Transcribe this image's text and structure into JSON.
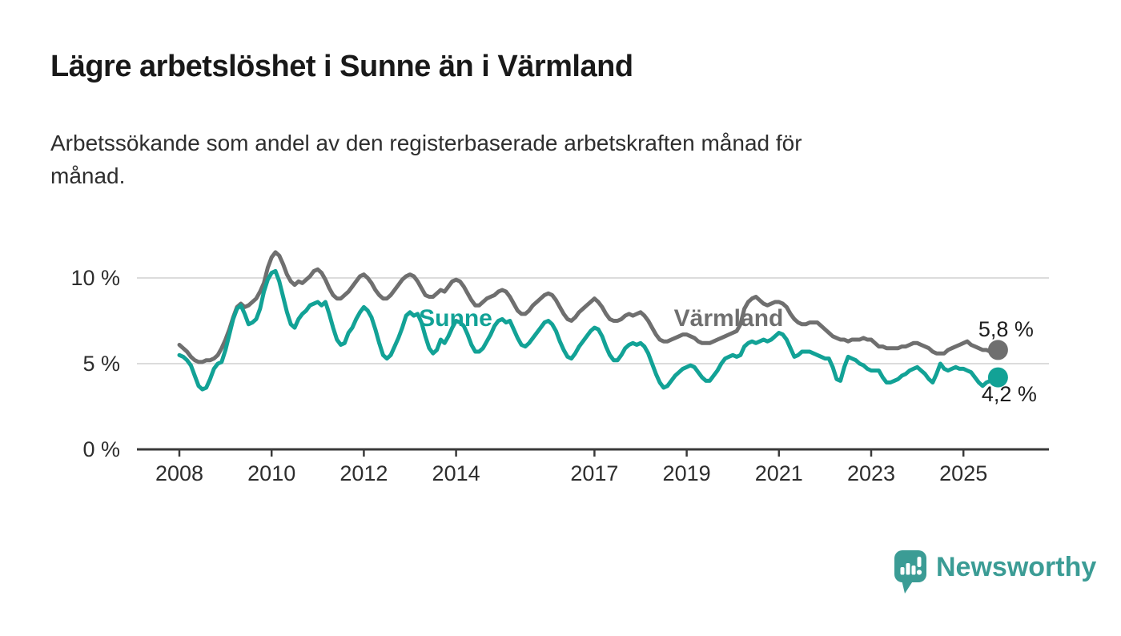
{
  "header": {
    "title": "Lägre arbetslöshet i Sunne än i Värmland",
    "subtitle_line1": "Arbetssökande som andel av den registerbaserade arbetskraften månad för",
    "subtitle_line2": "månad."
  },
  "chart_data": {
    "type": "line",
    "title": "Lägre arbetslöshet i Sunne än i Värmland",
    "subtitle": "Arbetssökande som andel av den registerbaserade arbetskraften månad för månad.",
    "unit": "%",
    "frequency": "monthly",
    "start": "2008-01",
    "end": "2025-10",
    "grid": "horizontal gridlines at 5 % and 10 %",
    "legend_position": "inline labels on lines",
    "ylim": [
      0,
      12.5
    ],
    "x_tick_labels": [
      2008,
      2010,
      2012,
      2014,
      2017,
      2019,
      2021,
      2023,
      2025
    ],
    "y_ticks": [
      {
        "value": 0,
        "label": "0 %"
      },
      {
        "value": 5,
        "label": "5 %"
      },
      {
        "value": 10,
        "label": "10 %"
      }
    ],
    "series": [
      {
        "name": "Sunne",
        "color": "#12a296",
        "end_label": "4,2 %",
        "last_value": 4.2,
        "values": [
          5.5,
          5.4,
          5.2,
          4.9,
          4.3,
          3.7,
          3.5,
          3.6,
          4.1,
          4.7,
          5.0,
          5.1,
          5.8,
          6.7,
          7.6,
          8.2,
          8.4,
          7.9,
          7.3,
          7.4,
          7.6,
          8.2,
          9.2,
          9.9,
          10.3,
          10.4,
          9.8,
          8.9,
          8.0,
          7.3,
          7.1,
          7.6,
          7.9,
          8.1,
          8.4,
          8.5,
          8.6,
          8.4,
          8.6,
          7.9,
          7.1,
          6.4,
          6.1,
          6.2,
          6.8,
          7.1,
          7.6,
          8.0,
          8.3,
          8.1,
          7.7,
          7.0,
          6.2,
          5.5,
          5.3,
          5.5,
          6.0,
          6.5,
          7.1,
          7.8,
          8.0,
          7.8,
          7.9,
          7.4,
          6.6,
          5.9,
          5.6,
          5.8,
          6.4,
          6.2,
          6.6,
          7.1,
          7.5,
          7.4,
          7.2,
          6.7,
          6.1,
          5.7,
          5.7,
          5.9,
          6.3,
          6.7,
          7.2,
          7.5,
          7.6,
          7.4,
          7.5,
          7.0,
          6.5,
          6.1,
          6.0,
          6.2,
          6.5,
          6.8,
          7.1,
          7.4,
          7.5,
          7.3,
          6.9,
          6.3,
          5.8,
          5.4,
          5.3,
          5.6,
          6.0,
          6.3,
          6.6,
          6.9,
          7.1,
          7.0,
          6.6,
          6.0,
          5.5,
          5.2,
          5.2,
          5.5,
          5.9,
          6.1,
          6.2,
          6.1,
          6.2,
          6.0,
          5.6,
          5.0,
          4.4,
          3.9,
          3.6,
          3.7,
          4.0,
          4.3,
          4.5,
          4.7,
          4.8,
          4.9,
          4.8,
          4.5,
          4.2,
          4.0,
          4.0,
          4.3,
          4.6,
          5.0,
          5.3,
          5.4,
          5.5,
          5.4,
          5.5,
          6.0,
          6.2,
          6.3,
          6.2,
          6.3,
          6.4,
          6.3,
          6.4,
          6.6,
          6.8,
          6.7,
          6.4,
          5.9,
          5.4,
          5.5,
          5.7,
          5.7,
          5.7,
          5.6,
          5.5,
          5.4,
          5.3,
          5.3,
          4.8,
          4.1,
          4.0,
          4.8,
          5.4,
          5.3,
          5.2,
          5.0,
          4.9,
          4.7,
          4.6,
          4.6,
          4.6,
          4.2,
          3.9,
          3.9,
          4.0,
          4.1,
          4.3,
          4.4,
          4.6,
          4.7,
          4.8,
          4.6,
          4.4,
          4.1,
          3.9,
          4.4,
          5.0,
          4.7,
          4.6,
          4.7,
          4.8,
          4.7,
          4.7,
          4.6,
          4.5,
          4.2,
          3.9,
          3.7,
          3.9,
          4.0,
          4.0,
          4.2
        ]
      },
      {
        "name": "Värmland",
        "color": "#6f6f6f",
        "end_label": "5,8 %",
        "last_value": 5.8,
        "values": [
          6.1,
          5.9,
          5.7,
          5.4,
          5.2,
          5.1,
          5.1,
          5.2,
          5.2,
          5.3,
          5.5,
          5.9,
          6.4,
          7.0,
          7.7,
          8.3,
          8.5,
          8.3,
          8.4,
          8.6,
          8.8,
          9.2,
          9.7,
          10.6,
          11.2,
          11.5,
          11.3,
          10.8,
          10.2,
          9.8,
          9.6,
          9.8,
          9.7,
          9.9,
          10.1,
          10.4,
          10.5,
          10.3,
          9.9,
          9.4,
          9.0,
          8.8,
          8.8,
          9.0,
          9.2,
          9.5,
          9.8,
          10.1,
          10.2,
          10.0,
          9.7,
          9.3,
          9.0,
          8.8,
          8.8,
          9.0,
          9.3,
          9.6,
          9.9,
          10.1,
          10.2,
          10.1,
          9.8,
          9.4,
          9.0,
          8.9,
          8.9,
          9.1,
          9.3,
          9.2,
          9.5,
          9.8,
          9.9,
          9.8,
          9.5,
          9.1,
          8.7,
          8.4,
          8.4,
          8.6,
          8.8,
          8.9,
          9.0,
          9.2,
          9.3,
          9.2,
          8.9,
          8.5,
          8.1,
          7.9,
          7.9,
          8.1,
          8.4,
          8.6,
          8.8,
          9.0,
          9.1,
          9.0,
          8.7,
          8.3,
          7.9,
          7.6,
          7.5,
          7.7,
          8.0,
          8.2,
          8.4,
          8.6,
          8.8,
          8.6,
          8.3,
          7.9,
          7.6,
          7.5,
          7.5,
          7.6,
          7.8,
          7.9,
          7.8,
          7.9,
          8.0,
          7.8,
          7.5,
          7.1,
          6.7,
          6.4,
          6.3,
          6.3,
          6.4,
          6.5,
          6.6,
          6.7,
          6.7,
          6.6,
          6.5,
          6.3,
          6.2,
          6.2,
          6.2,
          6.3,
          6.4,
          6.5,
          6.6,
          6.7,
          6.8,
          6.9,
          7.3,
          8.2,
          8.6,
          8.8,
          8.9,
          8.7,
          8.5,
          8.4,
          8.5,
          8.6,
          8.6,
          8.5,
          8.3,
          7.9,
          7.6,
          7.4,
          7.3,
          7.3,
          7.4,
          7.4,
          7.4,
          7.2,
          7.0,
          6.8,
          6.6,
          6.5,
          6.4,
          6.4,
          6.3,
          6.4,
          6.4,
          6.4,
          6.5,
          6.4,
          6.4,
          6.2,
          6.0,
          6.0,
          5.9,
          5.9,
          5.9,
          5.9,
          6.0,
          6.0,
          6.1,
          6.2,
          6.2,
          6.1,
          6.0,
          5.9,
          5.7,
          5.6,
          5.6,
          5.6,
          5.8,
          5.9,
          6.0,
          6.1,
          6.2,
          6.3,
          6.1,
          6.0,
          5.9,
          5.8,
          5.8,
          5.7,
          5.8,
          5.8
        ]
      }
    ]
  },
  "footer": {
    "brand": "Newsworthy",
    "brand_color": "#3b9c95"
  },
  "style_colors": {
    "sunne_line": "#12a296",
    "varmland_line": "#6f6f6f",
    "gridline": "#dcdcdc",
    "axis": "#3a3a3a",
    "text": "#2d2d2d"
  }
}
